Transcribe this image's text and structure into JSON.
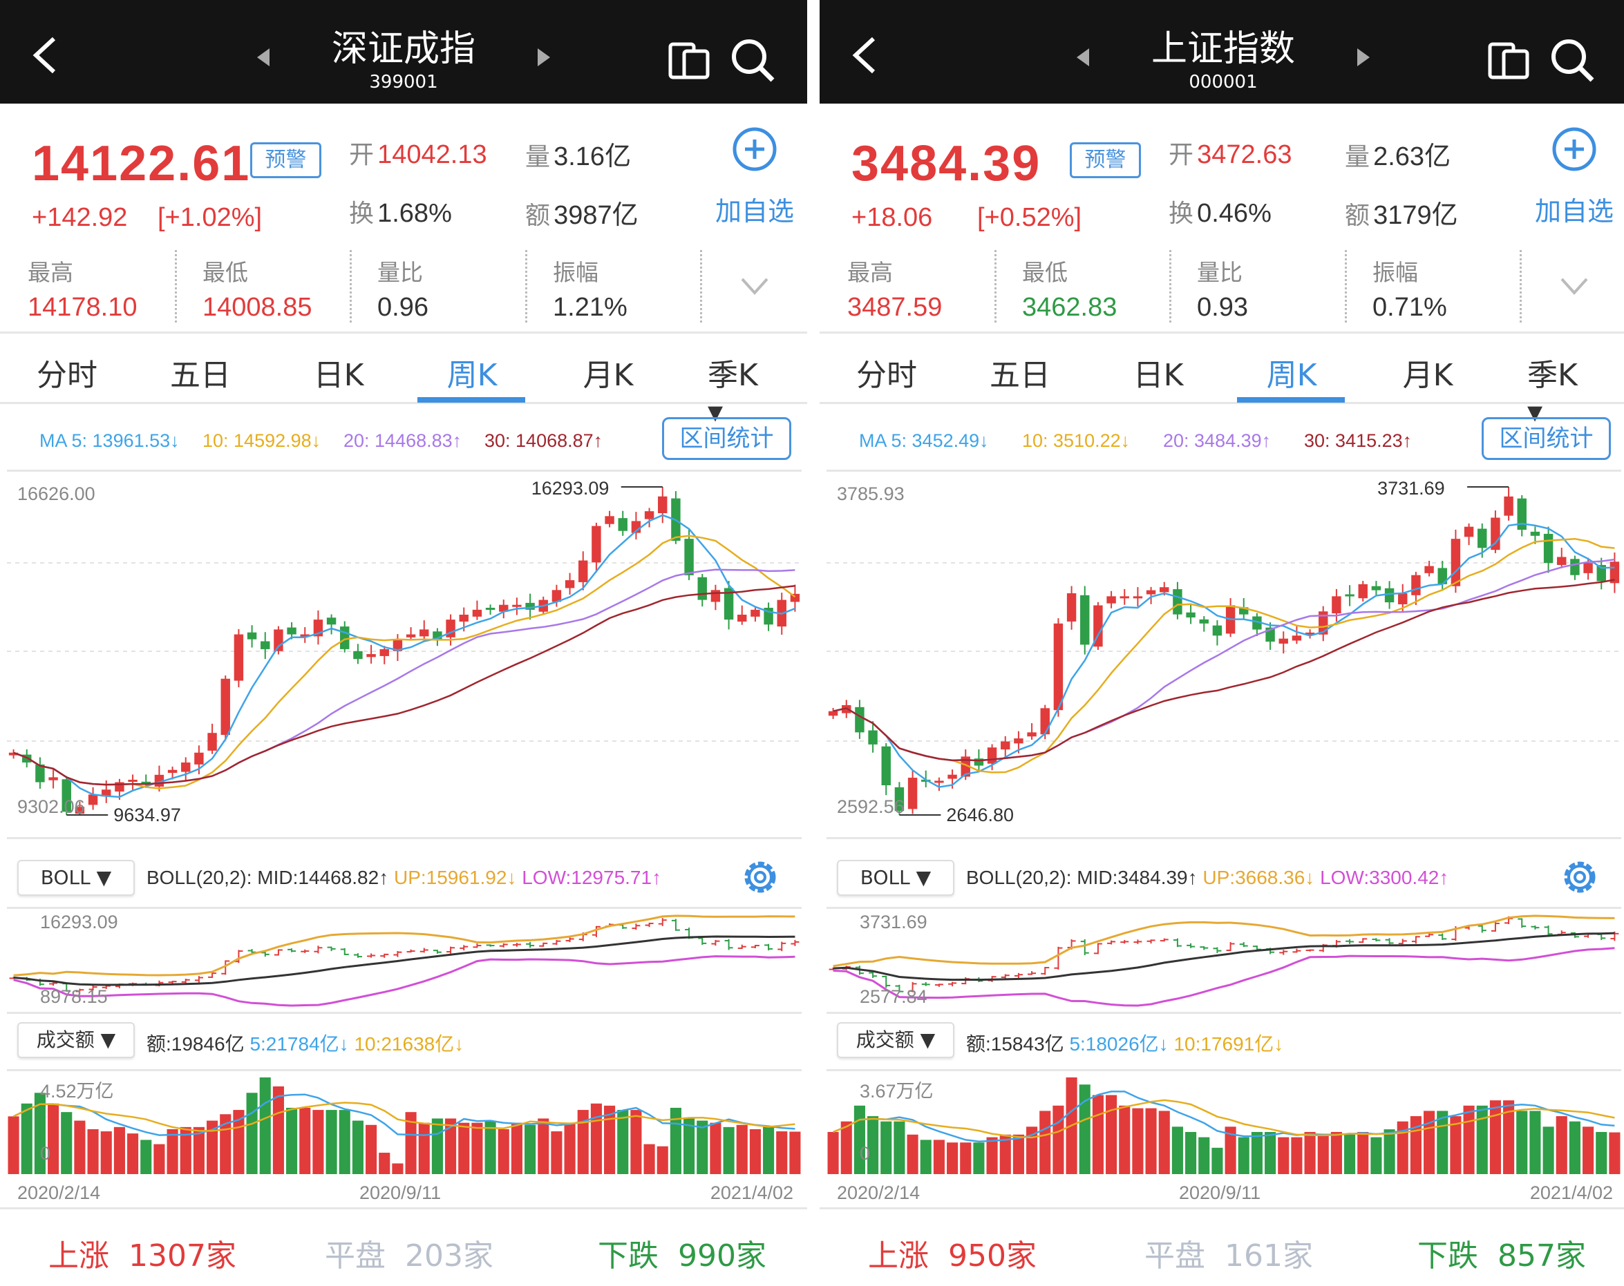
{
  "colors": {
    "up": "#e23b3b",
    "down": "#2e9e48",
    "accent": "#3d8fe0",
    "ma5": "#3ea4e8",
    "ma10": "#e6ad1e",
    "ma20": "#a878e8",
    "ma30": "#a0262e",
    "boll_mid": "#333333",
    "boll_up": "#e6a832",
    "boll_low": "#d24fd6"
  },
  "tabs": [
    "分时",
    "五日",
    "日K",
    "周K",
    "月K",
    "季K ▾"
  ],
  "labels": {
    "open": "开",
    "volume": "量",
    "turnover": "换",
    "amount": "额",
    "high": "最高",
    "low": "最低",
    "vol_ratio": "量比",
    "amplitude": "振幅",
    "alert": "预警",
    "add_fav": "加自选",
    "range_stats": "区间统计",
    "boll_select": "BOLL ▼",
    "amount_select": "成交额 ▼",
    "rise": "上涨",
    "flat": "平盘",
    "fall": "下跌"
  },
  "panels": [
    {
      "title": "深证成指",
      "code": "399001",
      "price": "14122.61",
      "change": "+142.92",
      "change_pct": "[+1.02%]",
      "open": "14042.13",
      "volume": "3.16亿",
      "turnover": "1.68%",
      "amount": "3987亿",
      "high": "14178.10",
      "low": "14008.85",
      "low_color": "red",
      "vol_ratio": "0.96",
      "amplitude": "1.21%",
      "ma": {
        "ma5": "MA 5: 13961.53↓",
        "ma10": "10: 14592.98↓",
        "ma20": "20: 14468.83↑",
        "ma30": "30: 14068.87↑"
      },
      "boll": "BOLL(20,2):  MID:14468.82↑",
      "boll_up": "UP:15961.92↓",
      "boll_low": "LOW:12975.71↑",
      "amt": "额:19846亿",
      "amt5": "5:21784亿↓",
      "amt10": "10:21638亿↓",
      "dates": [
        "2020/2/14",
        "2020/9/11",
        "2021/4/02"
      ],
      "stats": {
        "rise": "1307家",
        "flat": "203家",
        "fall": "990家"
      },
      "chart_data": {
        "type": "candlestick",
        "axis_top": "16626.00",
        "axis_bottom": "9302.06",
        "max_label": "16293.09",
        "min_label": "9634.97",
        "ymax": 16293.09,
        "ymin": 9634.97,
        "boll_top": "16293.09",
        "boll_bottom": "8978.15",
        "vol_top": "4.52万亿",
        "vol_zero": "0",
        "vol_max": 45200,
        "close": [
          10900,
          10700,
          10300,
          10400,
          9700,
          9800,
          10050,
          10150,
          10300,
          10350,
          10250,
          10450,
          10550,
          10700,
          10900,
          11300,
          12400,
          13300,
          13200,
          13000,
          13400,
          13300,
          13300,
          13600,
          13500,
          13000,
          12800,
          12900,
          13000,
          13200,
          13300,
          13400,
          13200,
          13600,
          13700,
          13800,
          13800,
          13900,
          13900,
          13800,
          14000,
          14200,
          14400,
          14800,
          15500,
          15700,
          15400,
          15600,
          15800,
          16100,
          15200,
          14500,
          14000,
          14200,
          13600,
          13700,
          13800,
          13500,
          14000,
          14122.61
        ],
        "amount": [
          27000,
          33000,
          38000,
          33000,
          29000,
          25000,
          21000,
          20000,
          22000,
          19000,
          16000,
          14000,
          21000,
          22000,
          22000,
          25000,
          28000,
          30000,
          38000,
          45200,
          41000,
          31000,
          31000,
          30000,
          30000,
          30000,
          25000,
          23000,
          10000,
          5000,
          29000,
          24000,
          26000,
          26000,
          24000,
          24000,
          25000,
          21000,
          24000,
          23000,
          26000,
          20000,
          24000,
          30000,
          33000,
          32000,
          30000,
          30000,
          14000,
          13000,
          31000,
          26000,
          25000,
          24000,
          22000,
          23000,
          21000,
          22000,
          20000,
          19846
        ]
      }
    },
    {
      "title": "上证指数",
      "code": "000001",
      "price": "3484.39",
      "change": "+18.06",
      "change_pct": "[+0.52%]",
      "open": "3472.63",
      "volume": "2.63亿",
      "turnover": "0.46%",
      "amount": "3179亿",
      "high": "3487.59",
      "low": "3462.83",
      "low_color": "green",
      "vol_ratio": "0.93",
      "amplitude": "0.71%",
      "ma": {
        "ma5": "MA 5: 3452.49↓",
        "ma10": "10: 3510.22↓",
        "ma20": "20: 3484.39↑",
        "ma30": "30: 3415.23↑"
      },
      "boll": "BOLL(20,2):  MID:3484.39↑",
      "boll_up": "UP:3668.36↓",
      "boll_low": "LOW:3300.42↑",
      "amt": "额:15843亿",
      "amt5": "5:18026亿↓",
      "amt10": "10:17691亿↓",
      "dates": [
        "2020/2/14",
        "2020/9/11",
        "2021/4/02"
      ],
      "stats": {
        "rise": "950家",
        "flat": "161家",
        "fall": "857家"
      },
      "chart_data": {
        "type": "candlestick",
        "axis_top": "3785.93",
        "axis_bottom": "2592.56",
        "max_label": "3731.69",
        "min_label": "2646.80",
        "ymax": 3731.69,
        "ymin": 2646.8,
        "boll_top": "3731.69",
        "boll_bottom": "2577.84",
        "vol_top": "3.67万亿",
        "vol_zero": "0",
        "vol_max": 36700,
        "close": [
          2990,
          3010,
          2920,
          2880,
          2745,
          2660,
          2770,
          2760,
          2760,
          2780,
          2840,
          2810,
          2870,
          2890,
          2900,
          2920,
          3000,
          3280,
          3380,
          3210,
          3340,
          3370,
          3370,
          3370,
          3390,
          3400,
          3310,
          3300,
          3280,
          3240,
          3340,
          3310,
          3260,
          3220,
          3230,
          3240,
          3250,
          3320,
          3370,
          3370,
          3410,
          3390,
          3350,
          3380,
          3440,
          3470,
          3410,
          3560,
          3600,
          3530,
          3630,
          3700,
          3590,
          3570,
          3480,
          3500,
          3440,
          3480,
          3420,
          3484.39
        ],
        "amount": [
          16000,
          20000,
          26000,
          22000,
          20000,
          20000,
          15000,
          13000,
          13000,
          12000,
          12000,
          12000,
          14000,
          15000,
          15000,
          18000,
          24000,
          26000,
          36700,
          34000,
          30000,
          30000,
          26000,
          25000,
          25000,
          24000,
          18000,
          16000,
          14000,
          10000,
          18000,
          14000,
          16000,
          16000,
          14000,
          14000,
          16000,
          15000,
          16000,
          15000,
          16000,
          14000,
          17000,
          20000,
          22000,
          24000,
          24000,
          22000,
          26000,
          26000,
          28000,
          28000,
          24000,
          24000,
          18000,
          22000,
          20000,
          18000,
          16000,
          15843
        ]
      }
    }
  ]
}
